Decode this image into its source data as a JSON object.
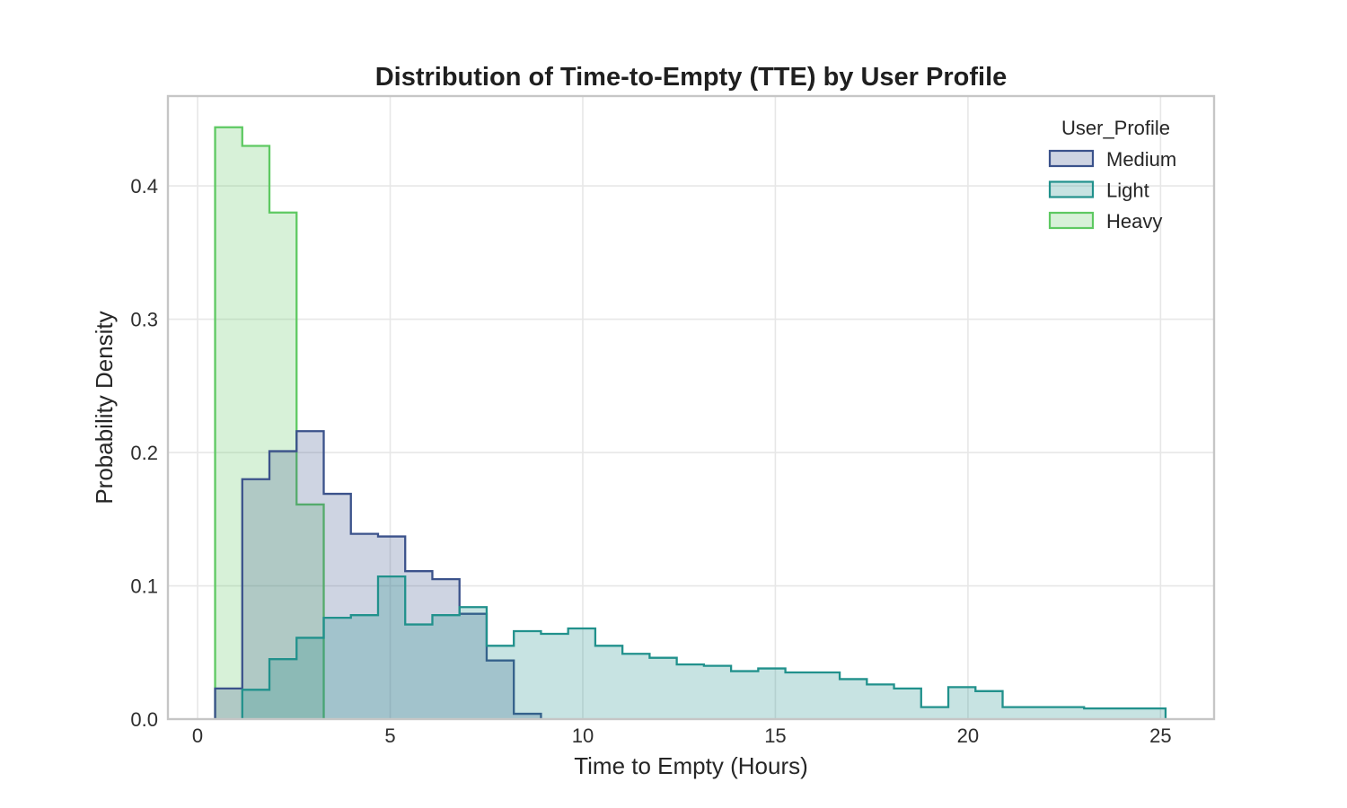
{
  "chart_data": {
    "type": "histogram",
    "element": "step",
    "stat": "density",
    "title": "Distribution of Time-to-Empty (TTE) by User Profile",
    "xlabel": "Time to Empty (Hours)",
    "ylabel": "Probability Density",
    "x_ticks": [
      0,
      5,
      10,
      15,
      20,
      25
    ],
    "y_ticks": [
      0.0,
      0.1,
      0.2,
      0.3,
      0.4
    ],
    "y_tick_labels": [
      "0.0",
      "0.1",
      "0.2",
      "0.3",
      "0.4"
    ],
    "xlim": [
      -0.77,
      26.39
    ],
    "ylim": [
      0,
      0.4674
    ],
    "grid": true,
    "bin_start": 0.455,
    "bin_width": 0.705,
    "legend_title": "User_Profile",
    "legend_order": [
      "Medium",
      "Light",
      "Heavy"
    ],
    "legend_position": "upper right",
    "series": [
      {
        "name": "Heavy",
        "color": "#5ec962",
        "fill_opacity": 0.25,
        "first_bin": 0,
        "heights": [
          0.444,
          0.43,
          0.38,
          0.161
        ]
      },
      {
        "name": "Medium",
        "color": "#3b528b",
        "fill_opacity": 0.25,
        "first_bin": 0,
        "heights": [
          0.023,
          0.18,
          0.201,
          0.216,
          0.169,
          0.139,
          0.137,
          0.111,
          0.105,
          0.079,
          0.044,
          0.004
        ]
      },
      {
        "name": "Light",
        "color": "#21918c",
        "fill_opacity": 0.25,
        "first_bin": 1,
        "heights": [
          0.022,
          0.045,
          0.061,
          0.076,
          0.078,
          0.107,
          0.071,
          0.078,
          0.084,
          0.055,
          0.066,
          0.064,
          0.068,
          0.055,
          0.049,
          0.046,
          0.041,
          0.04,
          0.036,
          0.038,
          0.035,
          0.035,
          0.03,
          0.026,
          0.023,
          0.009,
          0.024,
          0.021,
          0.009,
          0.009,
          0.009,
          0.008,
          0.008,
          0.008
        ]
      }
    ],
    "style": {
      "background": "#ffffff",
      "grid_color": "#e7e7e7",
      "spine_color": "#c6c6c6",
      "text_color": "#262626",
      "tick_color": "#2e2e2e"
    }
  }
}
